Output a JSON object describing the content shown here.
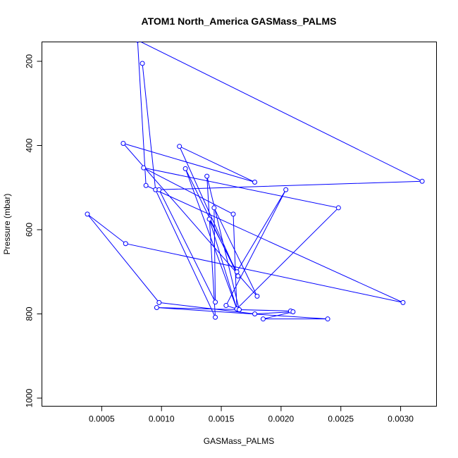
{
  "chart_data": {
    "type": "line",
    "title": "ATOM1 North_America GASMass_PALMS",
    "xlabel": "GASMass_PALMS",
    "ylabel": "Pressure (mbar)",
    "xlim": [
      0.0,
      0.0033
    ],
    "ylim": [
      1000,
      160
    ],
    "y_reversed": true,
    "grid": false,
    "x_ticks": [
      0.0005,
      0.001,
      0.0015,
      0.002,
      0.0025,
      0.003
    ],
    "x_tick_labels": [
      "0.0005",
      "0.0010",
      "0.0015",
      "0.0020",
      "0.0025",
      "0.0030"
    ],
    "y_ticks": [
      200,
      400,
      600,
      800,
      1000
    ],
    "y_tick_labels": [
      "200",
      "400",
      "600",
      "800",
      "1000"
    ],
    "series": [
      {
        "color": "#0000ff",
        "marker": "open-circle",
        "points": [
          [
            0.00084,
            205
          ],
          [
            0.00095,
            505
          ],
          [
            0.00145,
            808
          ],
          [
            0.00138,
            473
          ],
          [
            0.00165,
            790
          ],
          [
            0.00208,
            793
          ],
          [
            0.00096,
            785
          ],
          [
            0.00239,
            812
          ],
          [
            0.00185,
            812
          ],
          [
            0.0021,
            795
          ],
          [
            0.00178,
            800
          ],
          [
            0.00098,
            773
          ],
          [
            0.00038,
            563
          ],
          [
            0.0007,
            633
          ],
          [
            0.00302,
            773
          ],
          [
            0.00087,
            495
          ],
          [
            0.0008,
            150
          ],
          [
            0.00318,
            485
          ],
          [
            0.00098,
            505
          ],
          [
            0.00145,
            772
          ],
          [
            0.00144,
            548
          ],
          [
            0.0018,
            758
          ],
          [
            0.00068,
            395
          ],
          [
            0.00178,
            487
          ],
          [
            0.00115,
            402
          ],
          [
            0.00164,
            710
          ],
          [
            0.0012,
            455
          ],
          [
            0.00163,
            788
          ],
          [
            0.0016,
            563
          ],
          [
            0.00085,
            453
          ],
          [
            0.00248,
            548
          ],
          [
            0.00163,
            788
          ],
          [
            0.0014,
            575
          ],
          [
            0.00163,
            700
          ],
          [
            0.00204,
            505
          ],
          [
            0.00154,
            780
          ],
          [
            0.00165,
            790
          ]
        ]
      }
    ]
  }
}
